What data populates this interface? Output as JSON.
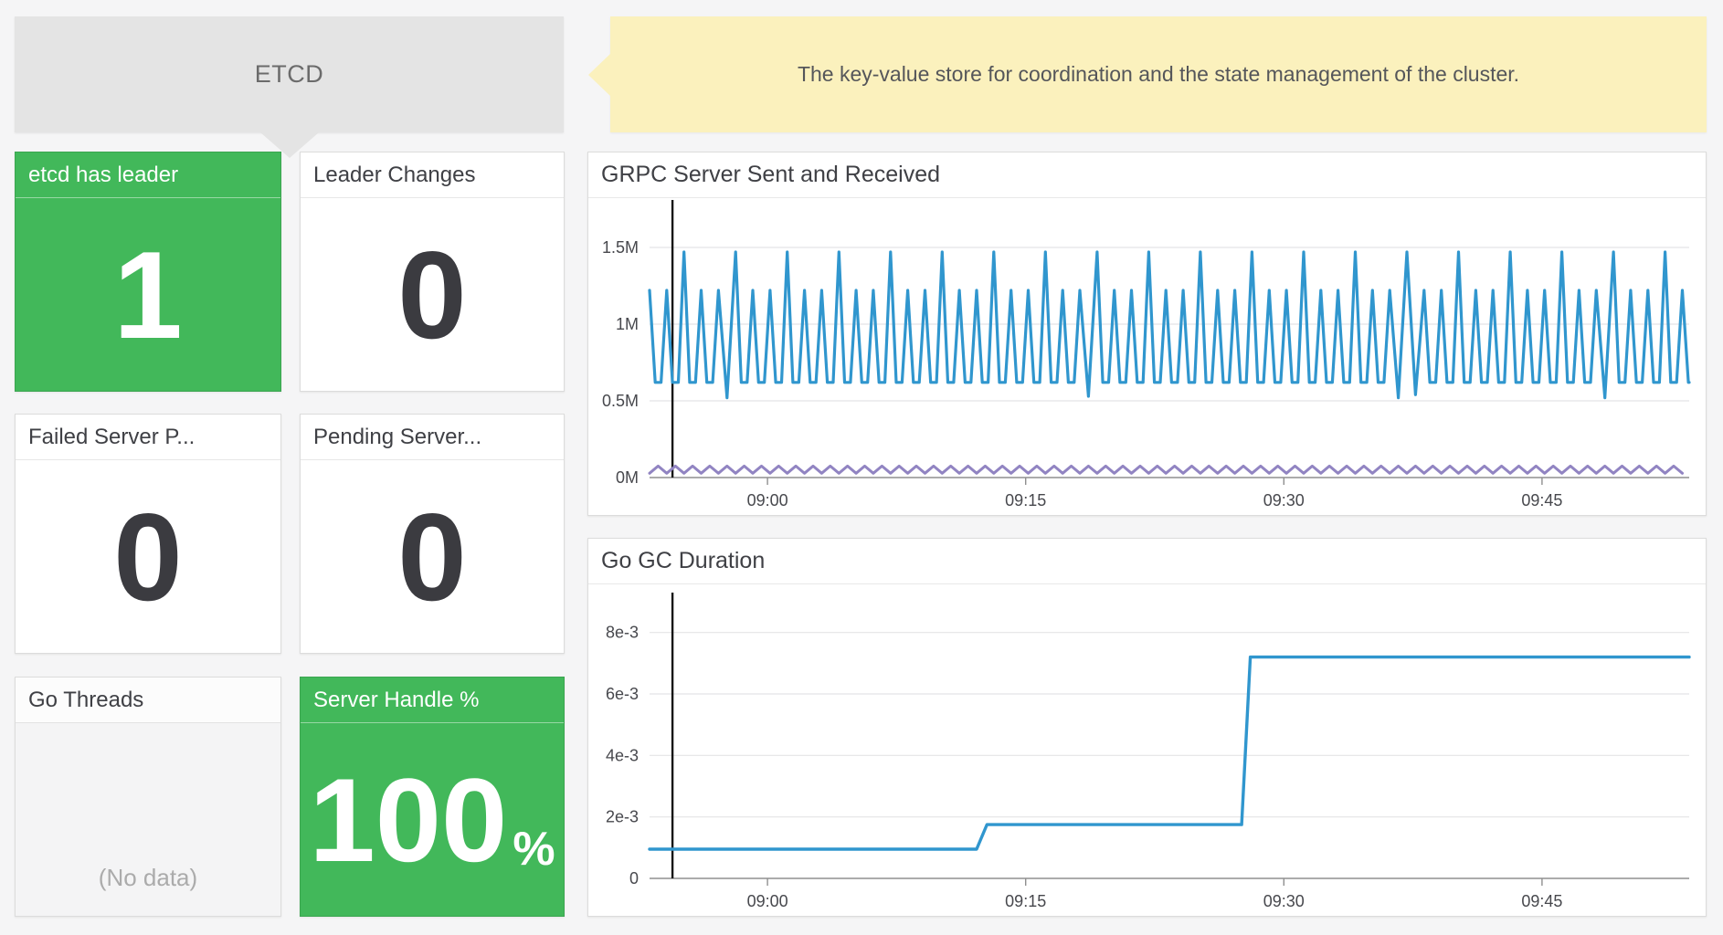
{
  "header": {
    "title": "ETCD",
    "description": "The key-value store for coordination and the state management of the cluster."
  },
  "stats": {
    "panels": [
      {
        "id": "etcd-has-leader",
        "title": "etcd has leader",
        "value": "1",
        "style": "green"
      },
      {
        "id": "leader-changes",
        "title": "Leader Changes",
        "value": "0",
        "style": "white"
      },
      {
        "id": "failed-server",
        "title": "Failed Server P...",
        "value": "0",
        "style": "white"
      },
      {
        "id": "pending-server",
        "title": "Pending Server...",
        "value": "0",
        "style": "white"
      },
      {
        "id": "go-threads",
        "title": "Go Threads",
        "value": "(No data)",
        "style": "nodata"
      },
      {
        "id": "server-handle",
        "title": "Server Handle %",
        "value": "100",
        "suffix": "%",
        "style": "green"
      }
    ]
  },
  "colors": {
    "green": "#42b85a",
    "yellow": "#fbf1bd",
    "blue": "#3096ce",
    "purple": "#9184c2",
    "header_gray": "#e4e4e4",
    "grid": "#e4e4e6",
    "axis_line": "#8f8f8f",
    "axis_text": "#47484d",
    "cursor": "#141414",
    "nodata_text": "#ababab"
  },
  "chart_data": [
    {
      "id": "grpc-server-sent-received",
      "type": "line",
      "title": "GRPC Server Sent and Received",
      "xlabel": "",
      "ylabel": "",
      "xlim": [
        0,
        60.4
      ],
      "ylim": [
        0,
        1750000
      ],
      "grid": true,
      "legend_position": "none",
      "yticks": [
        {
          "v": 0,
          "label": "0M"
        },
        {
          "v": 500000,
          "label": "0.5M"
        },
        {
          "v": 1000000,
          "label": "1M"
        },
        {
          "v": 1500000,
          "label": "1.5M"
        }
      ],
      "xticks": [
        {
          "v": 6.85,
          "label": "09:00"
        },
        {
          "v": 21.85,
          "label": "09:15"
        },
        {
          "v": 36.85,
          "label": "09:30"
        },
        {
          "v": 51.85,
          "label": "09:45"
        }
      ],
      "cursor_v": 1.33,
      "series": [
        {
          "name": "grpc-sent",
          "color": "#3096ce",
          "width": 3.2,
          "gen": {
            "kind": "spikes",
            "from": 0,
            "to": 60,
            "end": 60.4,
            "base": 620000,
            "peak_cycle": [
              1220000,
              1220000,
              1470000
            ],
            "dips": {
              "4": 520000,
              "25": 530000,
              "43": 520000,
              "44": 540000,
              "55": 520000
            }
          }
        },
        {
          "name": "grpc-received",
          "color": "#9184c2",
          "width": 3,
          "gen": {
            "kind": "zigzag",
            "from": 0,
            "to": 60.4,
            "period": 1,
            "min": 28000,
            "max": 75000
          }
        }
      ]
    },
    {
      "id": "go-gc-duration",
      "type": "line",
      "title": "Go GC Duration",
      "xlabel": "",
      "ylabel": "",
      "xlim": [
        0,
        60.4
      ],
      "ylim": [
        0,
        0.009
      ],
      "grid": true,
      "legend_position": "none",
      "yticks": [
        {
          "v": 0,
          "label": "0"
        },
        {
          "v": 0.002,
          "label": "2e-3"
        },
        {
          "v": 0.004,
          "label": "4e-3"
        },
        {
          "v": 0.006,
          "label": "6e-3"
        },
        {
          "v": 0.008,
          "label": "8e-3"
        }
      ],
      "xticks": [
        {
          "v": 6.85,
          "label": "09:00"
        },
        {
          "v": 21.85,
          "label": "09:15"
        },
        {
          "v": 36.85,
          "label": "09:30"
        },
        {
          "v": 51.85,
          "label": "09:45"
        }
      ],
      "cursor_v": 1.33,
      "series": [
        {
          "name": "gc-duration",
          "color": "#3096ce",
          "width": 3.4,
          "gen": {
            "kind": "points",
            "points": [
              [
                0,
                0.00095
              ],
              [
                19.0,
                0.00095
              ],
              [
                19.6,
                0.00175
              ],
              [
                34.4,
                0.00175
              ],
              [
                34.9,
                0.0072
              ],
              [
                60.4,
                0.0072
              ]
            ]
          }
        }
      ]
    }
  ]
}
